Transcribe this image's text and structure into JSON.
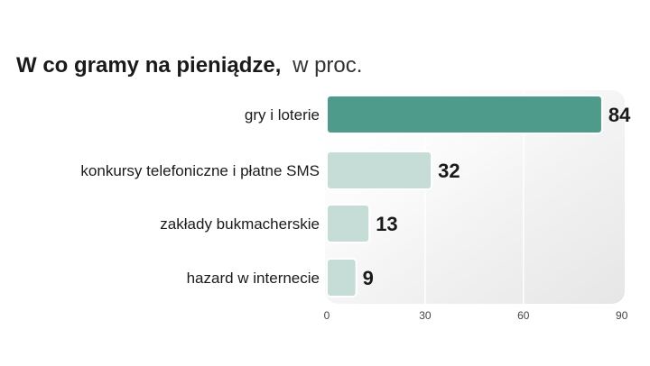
{
  "chart_data": {
    "type": "bar",
    "orientation": "horizontal",
    "title": "W co gramy na pieniądze,",
    "subtitle": "w proc.",
    "categories": [
      "gry i loterie",
      "konkursy telefoniczne i płatne SMS",
      "zakłady bukmacherskie",
      "hazard w internecie"
    ],
    "values": [
      84,
      32,
      13,
      9
    ],
    "value_labels": [
      "84",
      "32",
      "13",
      "9"
    ],
    "xlim": [
      0,
      90
    ],
    "ticks": [
      0,
      30,
      60,
      90
    ],
    "tick_labels": [
      "0",
      "30",
      "60",
      "90"
    ],
    "grid": true,
    "colors": {
      "highlight": "#4e9b8b",
      "bar": "#c5ddd6",
      "plot_background": "#eeeeee",
      "grid": "#ffffff"
    }
  }
}
